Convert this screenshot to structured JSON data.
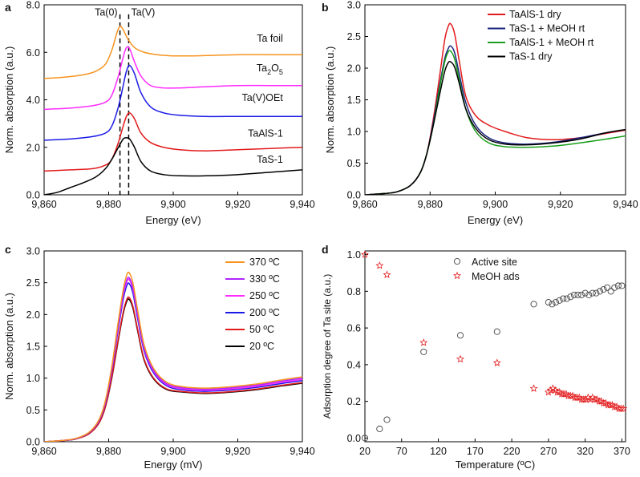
{
  "panels": [
    {
      "letter": "a"
    },
    {
      "letter": "b"
    },
    {
      "letter": "c"
    },
    {
      "letter": "d"
    }
  ],
  "chart_data": [
    {
      "id": "a",
      "type": "line",
      "xlabel": "Energy (eV)",
      "ylabel": "Norm. absorption (a.u.)",
      "xlim": [
        9860,
        9940
      ],
      "ylim": [
        0,
        8
      ],
      "xticks": [
        9860,
        9880,
        9900,
        9920,
        9940
      ],
      "xtick_labels": [
        "9,860",
        "9,880",
        "9,900",
        "9,920",
        "9,940"
      ],
      "yticks": [
        0,
        2,
        4,
        6,
        8
      ],
      "ytick_labels": [
        "0.0",
        "2.0",
        "4.0",
        "6.0",
        "8.0"
      ],
      "vlines": [
        9883.5,
        9886.2
      ],
      "vline_labels": [
        "Ta(0)",
        "Ta(V)"
      ],
      "series": [
        {
          "name": "Ta foil",
          "color": "#f7931e",
          "label_x": 9934,
          "label_y": 6.45,
          "x": [
            9860,
            9866,
            9872,
            9876,
            9879,
            9881,
            9882.5,
            9883.5,
            9884.5,
            9886,
            9888,
            9891,
            9895,
            9900,
            9906,
            9912,
            9920,
            9930,
            9940
          ],
          "y": [
            4.9,
            4.95,
            5.05,
            5.2,
            5.5,
            6.1,
            6.8,
            7.1,
            6.95,
            6.55,
            6.2,
            6.0,
            5.9,
            5.85,
            5.85,
            5.87,
            5.9,
            5.9,
            5.9
          ]
        },
        {
          "name": "Ta2O5",
          "sub": "2",
          "sub2": "5",
          "color": "#ff2bff",
          "label_x": 9934,
          "label_y": 5.2,
          "x": [
            9860,
            9868,
            9875,
            9879,
            9881,
            9883,
            9884.5,
            9885.5,
            9886.5,
            9888,
            9890,
            9893,
            9897,
            9902,
            9910,
            9920,
            9930,
            9940
          ],
          "y": [
            3.6,
            3.65,
            3.75,
            3.9,
            4.2,
            5.0,
            5.8,
            6.2,
            6.15,
            5.6,
            5.0,
            4.6,
            4.5,
            4.5,
            4.55,
            4.6,
            4.6,
            4.6
          ]
        },
        {
          "name": "Ta(V)OEt",
          "color": "#1a1ae6",
          "label_x": 9934,
          "label_y": 3.95,
          "x": [
            9860,
            9868,
            9875,
            9879,
            9881,
            9883,
            9884.5,
            9885.5,
            9886.5,
            9888,
            9890,
            9893,
            9897,
            9902,
            9910,
            9920,
            9930,
            9940
          ],
          "y": [
            2.3,
            2.35,
            2.45,
            2.6,
            2.9,
            3.7,
            4.6,
            5.2,
            5.45,
            5.1,
            4.3,
            3.7,
            3.45,
            3.35,
            3.3,
            3.3,
            3.3,
            3.3
          ]
        },
        {
          "name": "TaAlS-1",
          "color": "#e31a1c",
          "label_x": 9934,
          "label_y": 2.45,
          "x": [
            9860,
            9868,
            9875,
            9879,
            9881,
            9883,
            9884.5,
            9885.5,
            9886.5,
            9888,
            9890,
            9893,
            9897,
            9902,
            9910,
            9920,
            9930,
            9940
          ],
          "y": [
            1.0,
            1.05,
            1.1,
            1.25,
            1.5,
            2.2,
            2.9,
            3.3,
            3.45,
            3.2,
            2.6,
            2.2,
            2.0,
            1.9,
            1.85,
            1.9,
            1.95,
            2.0
          ]
        },
        {
          "name": "TaS-1",
          "color": "#000000",
          "label_x": 9934,
          "label_y": 1.35,
          "x": [
            9860,
            9864,
            9868,
            9872,
            9876,
            9879,
            9881,
            9883,
            9884.5,
            9885.5,
            9886.5,
            9888,
            9890,
            9893,
            9897,
            9902,
            9910,
            9920,
            9930,
            9940
          ],
          "y": [
            0.0,
            0.1,
            0.3,
            0.5,
            0.75,
            1.1,
            1.5,
            2.0,
            2.35,
            2.4,
            2.35,
            2.0,
            1.4,
            1.0,
            0.85,
            0.8,
            0.8,
            0.85,
            0.95,
            1.05
          ]
        }
      ]
    },
    {
      "id": "b",
      "type": "line",
      "xlabel": "Energy (eV)",
      "ylabel": "Norm. absorption (a.u.)",
      "xlim": [
        9860,
        9940
      ],
      "ylim": [
        0,
        3.0
      ],
      "xticks": [
        9860,
        9880,
        9900,
        9920,
        9940
      ],
      "xtick_labels": [
        "9,860",
        "9,880",
        "9,900",
        "9,920",
        "9,940"
      ],
      "yticks": [
        0,
        0.5,
        1.0,
        1.5,
        2.0,
        2.5,
        3.0
      ],
      "ytick_labels": [
        "0.0",
        "0.5",
        "1.0",
        "1.5",
        "2.0",
        "2.5",
        "3.0"
      ],
      "legend_position": "top-right",
      "series": [
        {
          "name": "TaAlS-1 dry",
          "color": "#e31a1c",
          "x": [
            9860,
            9866,
            9870,
            9874,
            9877,
            9879,
            9881,
            9883,
            9884.5,
            9885.5,
            9886.3,
            9887.5,
            9889,
            9891,
            9894,
            9898,
            9903,
            9910,
            9918,
            9926,
            9934,
            9940
          ],
          "y": [
            0.0,
            0.02,
            0.05,
            0.15,
            0.35,
            0.65,
            1.2,
            1.9,
            2.45,
            2.65,
            2.7,
            2.55,
            2.1,
            1.55,
            1.25,
            1.1,
            1.0,
            0.9,
            0.87,
            0.9,
            0.97,
            1.02
          ]
        },
        {
          "name": "TaS-1 + MeOH rt",
          "color": "#1a237e",
          "x": [
            9860,
            9866,
            9870,
            9874,
            9877,
            9879,
            9881,
            9883,
            9884.5,
            9885.5,
            9886.3,
            9887.5,
            9889,
            9891,
            9894,
            9898,
            9903,
            9910,
            9918,
            9926,
            9934,
            9940
          ],
          "y": [
            0.0,
            0.02,
            0.05,
            0.15,
            0.35,
            0.65,
            1.15,
            1.75,
            2.15,
            2.3,
            2.35,
            2.25,
            1.9,
            1.45,
            1.1,
            0.9,
            0.82,
            0.8,
            0.83,
            0.9,
            0.98,
            1.03
          ]
        },
        {
          "name": "TaAlS-1 + MeOH rt",
          "color": "#1b9e1b",
          "x": [
            9860,
            9866,
            9870,
            9874,
            9877,
            9879,
            9881,
            9883,
            9884.5,
            9885.5,
            9886.3,
            9887.5,
            9889,
            9891,
            9894,
            9898,
            9903,
            9910,
            9918,
            9926,
            9934,
            9940
          ],
          "y": [
            0.0,
            0.02,
            0.05,
            0.15,
            0.35,
            0.65,
            1.1,
            1.7,
            2.1,
            2.25,
            2.27,
            2.15,
            1.8,
            1.35,
            1.0,
            0.82,
            0.76,
            0.75,
            0.77,
            0.82,
            0.88,
            0.93
          ]
        },
        {
          "name": "TaS-1 dry",
          "color": "#000000",
          "x": [
            9860,
            9866,
            9870,
            9874,
            9877,
            9879,
            9881,
            9883,
            9884.5,
            9885.5,
            9886.3,
            9887.5,
            9889,
            9891,
            9894,
            9898,
            9903,
            9910,
            9918,
            9926,
            9934,
            9940
          ],
          "y": [
            0.0,
            0.02,
            0.05,
            0.15,
            0.35,
            0.65,
            1.1,
            1.6,
            1.95,
            2.08,
            2.1,
            2.02,
            1.75,
            1.35,
            1.05,
            0.87,
            0.8,
            0.79,
            0.82,
            0.88,
            0.98,
            1.03
          ]
        }
      ]
    },
    {
      "id": "c",
      "type": "line",
      "xlabel": "Energy (mV)",
      "ylabel": "Norm. absorption (a.u.)",
      "xlim": [
        9860,
        9940
      ],
      "ylim": [
        0,
        3.0
      ],
      "xticks": [
        9860,
        9880,
        9900,
        9920,
        9940
      ],
      "xtick_labels": [
        "9,860",
        "9,880",
        "9,900",
        "9,920",
        "9,940"
      ],
      "yticks": [
        0,
        0.5,
        1.0,
        1.5,
        2.0,
        2.5,
        3.0
      ],
      "ytick_labels": [
        "0.0",
        "0.5",
        "1.0",
        "1.5",
        "2.0",
        "2.5",
        "3.0"
      ],
      "legend_position": "top-right",
      "series": [
        {
          "name": "370 ºC",
          "color": "#f7931e",
          "peak": 2.66,
          "tail": 1.02
        },
        {
          "name": "330 ºC",
          "color": "#b026ff",
          "peak": 2.58,
          "tail": 1.0
        },
        {
          "name": "250 ºC",
          "color": "#ff2bff",
          "peak": 2.55,
          "tail": 0.98
        },
        {
          "name": "200 ºC",
          "color": "#1a1ae6",
          "peak": 2.49,
          "tail": 0.96
        },
        {
          "name": "50 ºC",
          "color": "#e31a1c",
          "peak": 2.27,
          "tail": 0.93
        },
        {
          "name": "20 ºC",
          "color": "#000000",
          "peak": 2.24,
          "tail": 0.92
        }
      ],
      "shape": {
        "x": [
          9860,
          9866,
          9870,
          9874,
          9877,
          9879,
          9881,
          9883,
          9884.5,
          9885.5,
          9886.3,
          9887.5,
          9889,
          9891,
          9894,
          9898,
          9903,
          9910,
          9918,
          9926,
          9934,
          9940
        ],
        "y": [
          0.0,
          0.02,
          0.05,
          0.14,
          0.32,
          0.6,
          1.1,
          1.75,
          2.2,
          2.4,
          2.45,
          2.3,
          1.9,
          1.4,
          1.05,
          0.85,
          0.78,
          0.76,
          0.78,
          0.82,
          0.88,
          0.92
        ]
      }
    },
    {
      "id": "d",
      "type": "scatter",
      "xlabel": "Temperature (ºC)",
      "ylabel": "Adsorption degree of Ta site (a.u.)",
      "xlim": [
        20,
        375
      ],
      "ylim": [
        -0.02,
        1.02
      ],
      "xticks": [
        20,
        70,
        120,
        170,
        220,
        270,
        320,
        370
      ],
      "xtick_labels": [
        "20",
        "70",
        "120",
        "170",
        "220",
        "270",
        "320",
        "370"
      ],
      "yticks": [
        0,
        0.2,
        0.4,
        0.6,
        0.8,
        1.0
      ],
      "ytick_labels": [
        "0.0",
        "0.2",
        "0.4",
        "0.6",
        "0.8",
        "1.0"
      ],
      "legend_position": "top-center",
      "series": [
        {
          "name": "Active site",
          "marker": "circle",
          "color": "#444444",
          "x": [
            20,
            40,
            50,
            100,
            150,
            200,
            250,
            270,
            275,
            280,
            285,
            290,
            295,
            300,
            305,
            310,
            315,
            320,
            325,
            330,
            335,
            340,
            345,
            350,
            355,
            360,
            365,
            370
          ],
          "y": [
            0.0,
            0.05,
            0.1,
            0.47,
            0.56,
            0.58,
            0.73,
            0.74,
            0.73,
            0.74,
            0.75,
            0.76,
            0.76,
            0.77,
            0.78,
            0.78,
            0.78,
            0.79,
            0.78,
            0.79,
            0.79,
            0.8,
            0.81,
            0.82,
            0.8,
            0.82,
            0.83,
            0.83
          ]
        },
        {
          "name": "MeOH ads",
          "marker": "star",
          "color": "#e31a1c",
          "x": [
            20,
            40,
            50,
            100,
            150,
            200,
            250,
            270,
            273,
            276,
            279,
            282,
            285,
            288,
            291,
            294,
            297,
            300,
            303,
            306,
            309,
            312,
            315,
            318,
            321,
            324,
            327,
            330,
            333,
            336,
            339,
            342,
            345,
            348,
            351,
            354,
            357,
            360,
            363,
            366,
            369,
            372
          ],
          "y": [
            1.0,
            0.94,
            0.89,
            0.52,
            0.43,
            0.41,
            0.27,
            0.25,
            0.26,
            0.27,
            0.26,
            0.25,
            0.25,
            0.24,
            0.24,
            0.24,
            0.23,
            0.23,
            0.23,
            0.22,
            0.22,
            0.22,
            0.21,
            0.21,
            0.21,
            0.22,
            0.21,
            0.22,
            0.21,
            0.21,
            0.2,
            0.2,
            0.19,
            0.19,
            0.18,
            0.18,
            0.18,
            0.17,
            0.17,
            0.16,
            0.16,
            0.16
          ]
        }
      ]
    }
  ]
}
